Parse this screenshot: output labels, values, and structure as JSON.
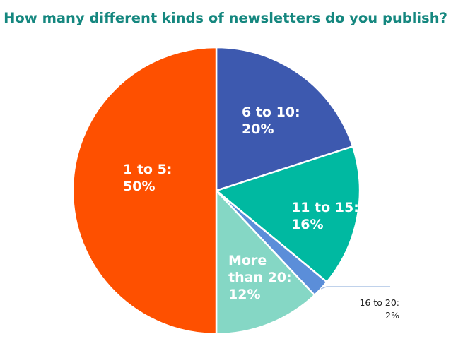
{
  "chart_data": {
    "type": "pie",
    "title": "How many different kinds of newsletters do you publish?",
    "slices": [
      {
        "label": "6 to 10:",
        "value": 20,
        "value_label": "20%",
        "color": "#3d59af"
      },
      {
        "label": "11 to 15:",
        "value": 16,
        "value_label": "16%",
        "color": "#00b9a1"
      },
      {
        "label": "16 to 20:",
        "value": 2,
        "value_label": "2%",
        "color": "#5b8ed9"
      },
      {
        "label": "More than 20:",
        "value": 12,
        "value_label": "12%",
        "color": "#85d7c5"
      },
      {
        "label": "1 to 5:",
        "value": 50,
        "value_label": "50%",
        "color": "#fe5000"
      }
    ]
  }
}
